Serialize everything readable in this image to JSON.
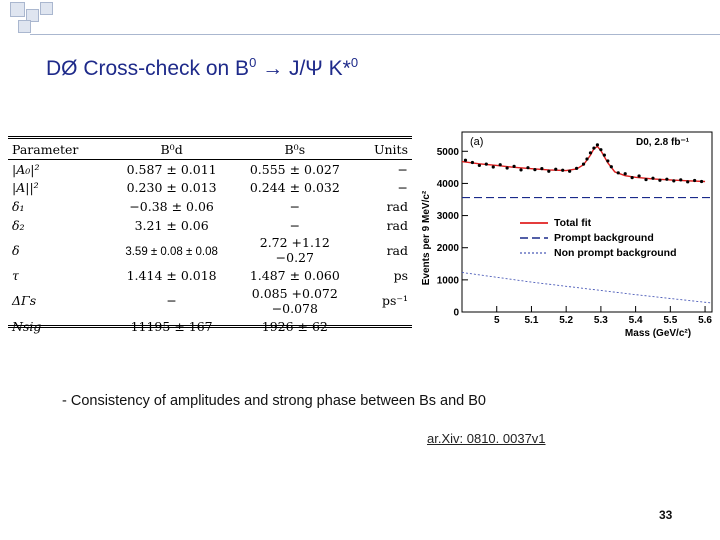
{
  "title": {
    "prefix": "DØ Cross-check on B",
    "sup1": "0",
    "mid": " → J/Ψ K*",
    "sup2": "0"
  },
  "table": {
    "headers": [
      "Parameter",
      "B⁰d",
      "B⁰s",
      "Units"
    ],
    "rows": [
      {
        "param": "|A₀|²",
        "bd": "0.587 ± 0.011",
        "bs": "0.555 ± 0.027",
        "unit": "−"
      },
      {
        "param": "|A||²",
        "bd": "0.230 ± 0.013",
        "bs": "0.244 ± 0.032",
        "unit": "−"
      },
      {
        "param": "δ₁",
        "bd": "−0.38 ± 0.06",
        "bs": "−",
        "unit": "rad"
      },
      {
        "param": "δ₂",
        "bd": "3.21 ± 0.06",
        "bs": "−",
        "unit": "rad"
      },
      {
        "param": "δ",
        "bd": "3.59 ± 0.08 ± 0.08",
        "bs": "2.72 +1.12 −0.27",
        "unit": "rad"
      },
      {
        "param": "τ",
        "bd": "1.414 ± 0.018",
        "bs": "1.487 ± 0.060",
        "unit": "ps"
      },
      {
        "param": "ΔΓs",
        "bd": "−",
        "bs": "0.085 +0.072 −0.078",
        "unit": "ps⁻¹"
      },
      {
        "param": "Nsig",
        "bd": "11195 ± 167",
        "bs": "1926 ± 62",
        "unit": ""
      }
    ]
  },
  "chart_data": {
    "type": "scatter",
    "panel_label": "(a)",
    "annotation": "D0, 2.8 fb⁻¹",
    "xlabel": "Mass (GeV/c²)",
    "ylabel": "Events per 9 MeV/c²",
    "xlim": [
      4.9,
      5.62
    ],
    "ylim": [
      0,
      5600
    ],
    "x_ticks": [
      5,
      5.1,
      5.2,
      5.3,
      5.4,
      5.5,
      5.6
    ],
    "y_ticks": [
      0,
      1000,
      2000,
      3000,
      4000,
      5000
    ],
    "legend": [
      "Total fit",
      "Prompt background",
      "Non prompt background"
    ],
    "legend_position": "center-right",
    "series": [
      {
        "name": "Total fit",
        "color": "#e02020",
        "x": [
          4.9,
          4.95,
          5.0,
          5.05,
          5.1,
          5.15,
          5.2,
          5.23,
          5.25,
          5.27,
          5.28,
          5.29,
          5.3,
          5.32,
          5.34,
          5.37,
          5.4,
          5.45,
          5.5,
          5.55,
          5.6
        ],
        "y": [
          4680,
          4610,
          4560,
          4500,
          4460,
          4420,
          4400,
          4450,
          4580,
          4880,
          5080,
          5150,
          5020,
          4640,
          4360,
          4240,
          4190,
          4140,
          4110,
          4080,
          4060
        ]
      },
      {
        "name": "Prompt background",
        "color": "#1a2a8a",
        "x": [
          4.9,
          5.62
        ],
        "y": [
          3560,
          3560
        ]
      },
      {
        "name": "Non prompt background",
        "color": "#4a5ab8",
        "x": [
          4.9,
          5.0,
          5.1,
          5.2,
          5.3,
          5.4,
          5.5,
          5.62
        ],
        "y": [
          1230,
          1080,
          930,
          800,
          670,
          540,
          420,
          280
        ]
      }
    ],
    "points_x": [
      4.91,
      4.93,
      4.95,
      4.97,
      4.99,
      5.01,
      5.03,
      5.05,
      5.07,
      5.09,
      5.11,
      5.13,
      5.15,
      5.17,
      5.19,
      5.21,
      5.23,
      5.25,
      5.26,
      5.27,
      5.28,
      5.29,
      5.3,
      5.31,
      5.32,
      5.33,
      5.35,
      5.37,
      5.39,
      5.41,
      5.43,
      5.45,
      5.47,
      5.49,
      5.51,
      5.53,
      5.55,
      5.57,
      5.59
    ],
    "points_y": [
      4720,
      4650,
      4560,
      4600,
      4510,
      4580,
      4480,
      4530,
      4420,
      4490,
      4430,
      4460,
      4380,
      4440,
      4410,
      4380,
      4470,
      4600,
      4760,
      4950,
      5100,
      5200,
      5050,
      4880,
      4700,
      4520,
      4330,
      4300,
      4180,
      4230,
      4120,
      4160,
      4100,
      4130,
      4080,
      4110,
      4050,
      4090,
      4060
    ]
  },
  "bullet": "- Consistency of amplitudes and strong phase between Bs and B0",
  "reference": "ar.Xiv: 0810. 0037v1",
  "page_number": "33"
}
